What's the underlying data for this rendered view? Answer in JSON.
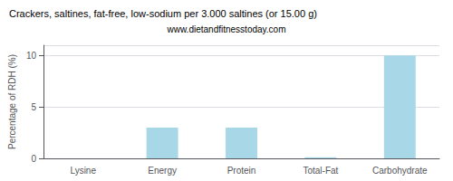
{
  "chart_data": {
    "type": "bar",
    "title": "Crackers, saltines, fat-free, low-sodium per 3.000 saltines (or 15.00 g)",
    "subtitle": "www.dietandfitnesstoday.com",
    "categories": [
      "Lysine",
      "Energy",
      "Protein",
      "Total-Fat",
      "Carbohydrate"
    ],
    "values": [
      0.0,
      3.0,
      3.0,
      0.1,
      10.0
    ],
    "color": "#a8d8e8",
    "ylabel": "Percentage of RDH (%)",
    "ylim": [
      0,
      11
    ],
    "yticks": [
      0,
      5,
      10
    ],
    "grid": true
  }
}
